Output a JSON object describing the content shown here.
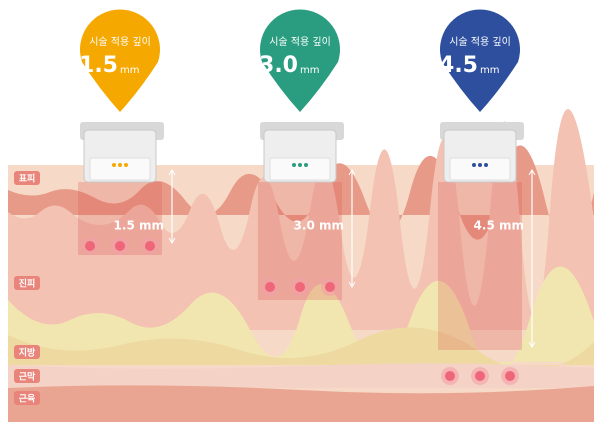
{
  "pins": [
    {
      "caption": "시술 적용 깊이",
      "depth": "1.5",
      "unit": "mm"
    },
    {
      "caption": "시술 적용 깊이",
      "depth": "3.0",
      "unit": "mm"
    },
    {
      "caption": "시술 적용 깊이",
      "depth": "4.5",
      "unit": "mm"
    }
  ],
  "layers": [
    "표피",
    "진피",
    "지방",
    "근막",
    "근육"
  ],
  "depth_labels": [
    "1.5 mm",
    "3.0 mm",
    "4.5 mm"
  ]
}
